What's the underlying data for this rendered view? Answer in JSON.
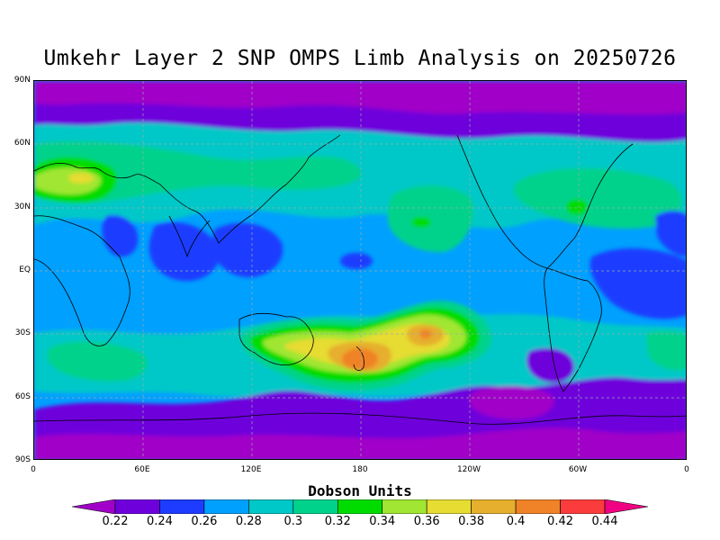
{
  "title": "Umkehr Layer 2 SNP OMPS Limb Analysis on 20250726",
  "lat_labels": [
    "90N",
    "60N",
    "30N",
    "EQ",
    "30S",
    "60S",
    "90S"
  ],
  "lon_labels": [
    "0",
    "60E",
    "120E",
    "180",
    "120W",
    "60W",
    "0"
  ],
  "colorbar": {
    "title": "Dobson Units",
    "labels": [
      "0.22",
      "0.24",
      "0.26",
      "0.28",
      "0.3",
      "0.32",
      "0.34",
      "0.36",
      "0.38",
      "0.4",
      "0.42",
      "0.44"
    ],
    "colors": [
      "#a000c8",
      "#6e00dc",
      "#1e3cff",
      "#00a0ff",
      "#00c8c8",
      "#00d28c",
      "#00dc00",
      "#a0e632",
      "#e6dc32",
      "#e6af2d",
      "#f08228",
      "#fa3c3c",
      "#f00082"
    ]
  },
  "map": {
    "background_color": "#00a0ff",
    "features": [
      {
        "name": "ozone-high-new-zealand",
        "level": "0.42"
      },
      {
        "name": "ozone-high-south-pacific",
        "level": "0.40"
      },
      {
        "name": "ozone-high-europe",
        "level": "0.36"
      },
      {
        "name": "ozone-low-arctic",
        "level": "0.22"
      },
      {
        "name": "ozone-low-antarctic",
        "level": "0.22"
      }
    ]
  }
}
